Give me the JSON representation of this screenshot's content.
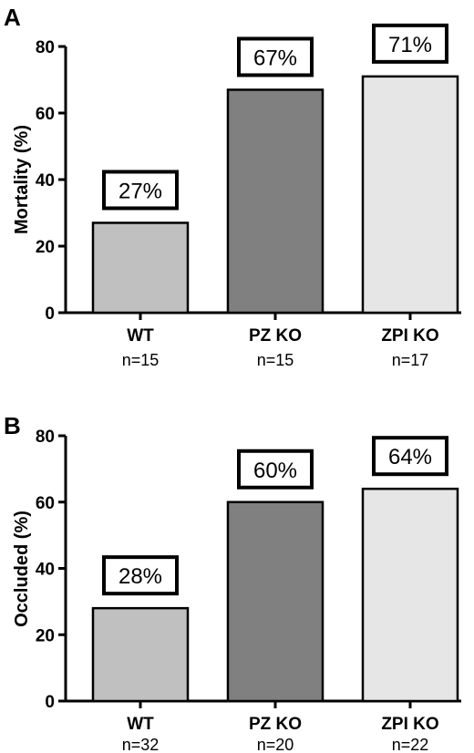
{
  "chart_data": [
    {
      "type": "bar",
      "panel": "A",
      "ylabel": "Mortality (%)",
      "ylim": [
        0,
        80
      ],
      "yticks": [
        0,
        20,
        40,
        60,
        80
      ],
      "categories": [
        "WT",
        "PZ KO",
        "ZPI KO"
      ],
      "n_labels": [
        "n=15",
        "n=15",
        "n=17"
      ],
      "values": [
        27,
        67,
        71
      ],
      "value_labels": [
        "27%",
        "67%",
        "71%"
      ],
      "colors": [
        "#c0c0c0",
        "#808080",
        "#e6e6e6"
      ],
      "grid": false
    },
    {
      "type": "bar",
      "panel": "B",
      "ylabel": "Occluded (%)",
      "ylim": [
        0,
        80
      ],
      "yticks": [
        0,
        20,
        40,
        60,
        80
      ],
      "categories": [
        "WT",
        "PZ KO",
        "ZPI KO"
      ],
      "n_labels": [
        "n=32",
        "n=20",
        "n=22"
      ],
      "values": [
        28,
        60,
        64
      ],
      "value_labels": [
        "28%",
        "60%",
        "64%"
      ],
      "colors": [
        "#c0c0c0",
        "#808080",
        "#e6e6e6"
      ],
      "grid": false
    }
  ]
}
